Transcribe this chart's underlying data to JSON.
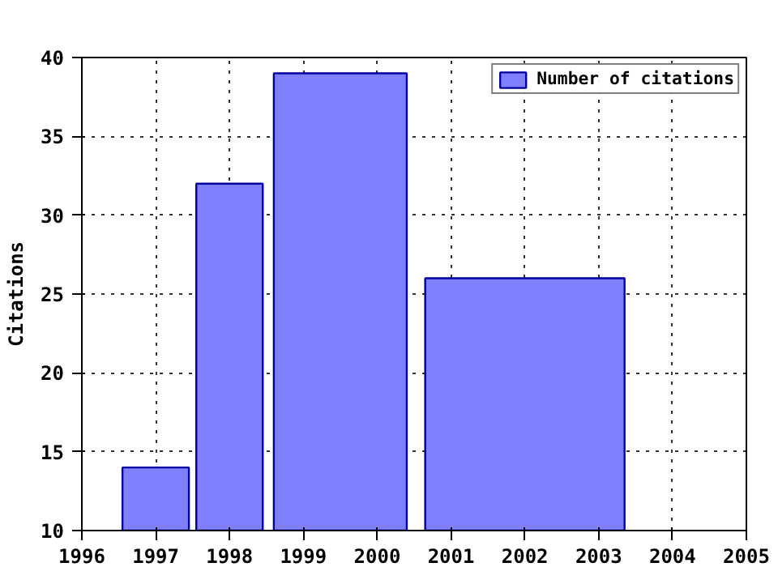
{
  "chart_data": {
    "type": "histogram",
    "ylabel": "Citations",
    "bins": [
      1996.5,
      1997.5,
      1998.5,
      2000.5,
      2003.5
    ],
    "series": [
      {
        "name": "Number of citations",
        "color": "#8080ff",
        "values": [
          14,
          32,
          39,
          26
        ]
      }
    ],
    "xlim": [
      1996,
      2005
    ],
    "xticks": [
      1996,
      1997,
      1998,
      1999,
      2000,
      2001,
      2002,
      2003,
      2004,
      2005
    ],
    "ylim": [
      10,
      40
    ],
    "yticks": [
      10,
      15,
      20,
      25,
      30,
      35,
      40
    ],
    "grid": true,
    "legend": "top right"
  }
}
